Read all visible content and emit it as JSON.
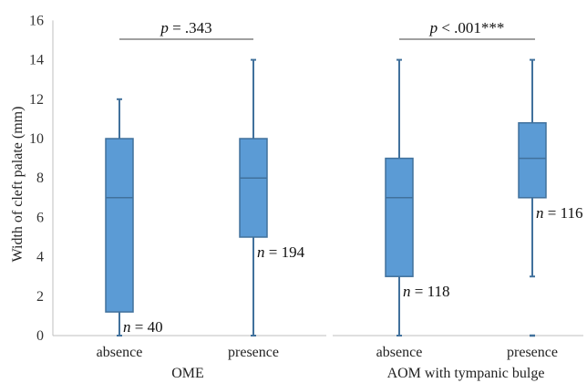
{
  "chart_data": {
    "type": "boxplot",
    "ylabel": "Width of cleft palate (mm)",
    "ylim": [
      0,
      16
    ],
    "yticks": [
      0,
      2,
      4,
      6,
      8,
      10,
      12,
      14,
      16
    ],
    "grid": false,
    "box_color": "#5b9bd5",
    "edge_color": "#41719c",
    "groups": [
      {
        "label": "OME",
        "p_prefix": "p",
        "p_value": " = .343",
        "boxes": [
          {
            "category": "absence",
            "min": 0,
            "q1": 1.2,
            "median": 7,
            "q3": 10,
            "max": 12,
            "n_prefix": "n",
            "n_text": " = 40"
          },
          {
            "category": "presence",
            "min": 0,
            "q1": 5,
            "median": 8,
            "q3": 10,
            "max": 14,
            "n_prefix": "n",
            "n_text": " = 194"
          }
        ]
      },
      {
        "label": "AOM with tympanic bulge",
        "p_prefix": "p",
        "p_value": " < .001***",
        "boxes": [
          {
            "category": "absence",
            "min": 0,
            "q1": 3,
            "median": 7,
            "q3": 9,
            "max": 14,
            "n_prefix": "n",
            "n_text": " = 118"
          },
          {
            "category": "presence",
            "min": 3,
            "q1": 7,
            "median": 9,
            "q3": 10.8,
            "max": 14,
            "outliers": [
              0
            ],
            "n_prefix": "n",
            "n_text": " = 116"
          }
        ]
      }
    ]
  }
}
